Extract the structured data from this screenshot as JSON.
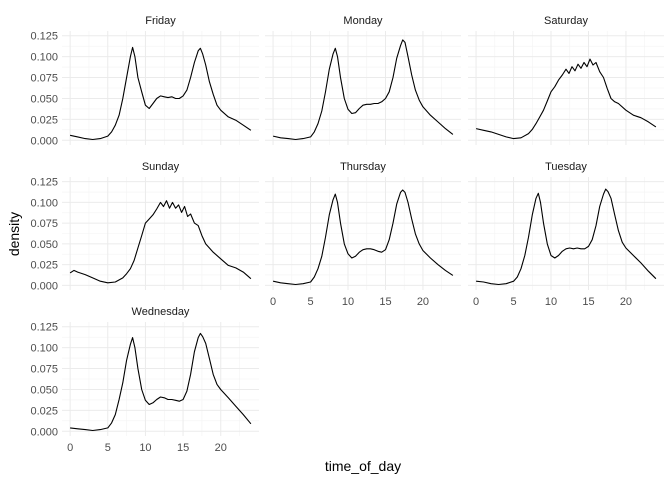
{
  "chart_data": {
    "type": "line",
    "xlabel": "time_of_day",
    "ylabel": "density",
    "xlim": [
      0,
      24
    ],
    "ylim": [
      0,
      0.125
    ],
    "x_ticks": [
      0,
      5,
      10,
      15,
      20
    ],
    "x_tick_labels": [
      "0",
      "5",
      "10",
      "15",
      "20"
    ],
    "y_ticks": [
      0,
      0.025,
      0.05,
      0.075,
      0.1,
      0.125
    ],
    "y_tick_labels": [
      "0.000",
      "0.025",
      "0.050",
      "0.075",
      "0.100",
      "0.125"
    ],
    "grid": true,
    "panels": [
      {
        "name": "Friday",
        "x": [
          0,
          1,
          2,
          3,
          4,
          5,
          5.5,
          6,
          6.5,
          7,
          7.5,
          8,
          8.3,
          8.6,
          9,
          9.5,
          10,
          10.5,
          11,
          11.5,
          12,
          12.5,
          13,
          13.5,
          14,
          14.5,
          15,
          15.5,
          16,
          16.5,
          17,
          17.3,
          17.6,
          18,
          18.5,
          19,
          19.5,
          20,
          21,
          22,
          23,
          24
        ],
        "y": [
          0.006,
          0.004,
          0.002,
          0.001,
          0.002,
          0.005,
          0.01,
          0.018,
          0.03,
          0.05,
          0.075,
          0.1,
          0.111,
          0.1,
          0.075,
          0.058,
          0.042,
          0.038,
          0.044,
          0.05,
          0.053,
          0.052,
          0.051,
          0.052,
          0.05,
          0.05,
          0.053,
          0.06,
          0.075,
          0.093,
          0.107,
          0.11,
          0.103,
          0.09,
          0.07,
          0.055,
          0.042,
          0.036,
          0.028,
          0.024,
          0.018,
          0.012
        ]
      },
      {
        "name": "Monday",
        "x": [
          0,
          1,
          2,
          3,
          4,
          5,
          5.5,
          6,
          6.5,
          7,
          7.5,
          8,
          8.3,
          8.6,
          9,
          9.5,
          10,
          10.5,
          11,
          11.5,
          12,
          12.5,
          13,
          13.5,
          14,
          14.5,
          15,
          15.5,
          16,
          16.5,
          17,
          17.3,
          17.6,
          18,
          18.5,
          19,
          19.5,
          20,
          21,
          22,
          23,
          24
        ],
        "y": [
          0.005,
          0.003,
          0.002,
          0.001,
          0.002,
          0.004,
          0.01,
          0.02,
          0.035,
          0.058,
          0.085,
          0.103,
          0.11,
          0.1,
          0.075,
          0.05,
          0.037,
          0.032,
          0.033,
          0.038,
          0.042,
          0.043,
          0.043,
          0.044,
          0.044,
          0.046,
          0.05,
          0.058,
          0.075,
          0.098,
          0.113,
          0.12,
          0.117,
          0.1,
          0.078,
          0.06,
          0.048,
          0.04,
          0.03,
          0.022,
          0.014,
          0.007
        ]
      },
      {
        "name": "Saturday",
        "x": [
          0,
          1,
          2,
          3,
          4,
          5,
          6,
          7,
          7.5,
          8,
          8.5,
          9,
          9.5,
          10,
          10.5,
          11,
          11.5,
          12,
          12.4,
          12.8,
          13.2,
          13.6,
          14,
          14.4,
          14.8,
          15.2,
          15.6,
          16,
          16.5,
          17,
          17.5,
          18,
          18.5,
          19,
          20,
          21,
          22,
          23,
          24
        ],
        "y": [
          0.014,
          0.012,
          0.01,
          0.007,
          0.004,
          0.002,
          0.003,
          0.008,
          0.013,
          0.02,
          0.028,
          0.036,
          0.047,
          0.058,
          0.064,
          0.072,
          0.078,
          0.085,
          0.08,
          0.088,
          0.083,
          0.091,
          0.086,
          0.093,
          0.088,
          0.097,
          0.09,
          0.093,
          0.082,
          0.075,
          0.062,
          0.05,
          0.046,
          0.044,
          0.036,
          0.03,
          0.027,
          0.022,
          0.016
        ]
      },
      {
        "name": "Sunday",
        "x": [
          0,
          0.5,
          1,
          2,
          3,
          4,
          5,
          6,
          7,
          7.5,
          8,
          8.5,
          9,
          9.5,
          10,
          10.5,
          11,
          11.5,
          12,
          12.4,
          12.8,
          13.2,
          13.6,
          14,
          14.4,
          14.8,
          15.2,
          15.6,
          16,
          16.5,
          17,
          17.5,
          18,
          18.5,
          19,
          20,
          21,
          22,
          23,
          24
        ],
        "y": [
          0.015,
          0.018,
          0.016,
          0.013,
          0.009,
          0.005,
          0.003,
          0.004,
          0.009,
          0.014,
          0.02,
          0.03,
          0.045,
          0.06,
          0.075,
          0.08,
          0.085,
          0.092,
          0.1,
          0.095,
          0.102,
          0.093,
          0.1,
          0.093,
          0.097,
          0.088,
          0.095,
          0.083,
          0.086,
          0.075,
          0.072,
          0.06,
          0.05,
          0.045,
          0.04,
          0.032,
          0.024,
          0.021,
          0.016,
          0.008
        ]
      },
      {
        "name": "Thursday",
        "x": [
          0,
          1,
          2,
          3,
          4,
          5,
          5.5,
          6,
          6.5,
          7,
          7.5,
          8,
          8.3,
          8.6,
          9,
          9.5,
          10,
          10.5,
          11,
          11.5,
          12,
          12.5,
          13,
          13.5,
          14,
          14.5,
          15,
          15.5,
          16,
          16.5,
          17,
          17.3,
          17.6,
          18,
          18.5,
          19,
          19.5,
          20,
          21,
          22,
          23,
          24
        ],
        "y": [
          0.005,
          0.003,
          0.002,
          0.001,
          0.002,
          0.004,
          0.01,
          0.02,
          0.035,
          0.058,
          0.085,
          0.103,
          0.11,
          0.1,
          0.075,
          0.05,
          0.038,
          0.033,
          0.035,
          0.04,
          0.043,
          0.044,
          0.044,
          0.043,
          0.041,
          0.04,
          0.043,
          0.055,
          0.075,
          0.098,
          0.112,
          0.115,
          0.112,
          0.1,
          0.08,
          0.062,
          0.05,
          0.042,
          0.033,
          0.025,
          0.018,
          0.012
        ]
      },
      {
        "name": "Tuesday",
        "x": [
          0,
          1,
          2,
          3,
          4,
          5,
          5.5,
          6,
          6.5,
          7,
          7.5,
          8,
          8.3,
          8.6,
          9,
          9.5,
          10,
          10.5,
          11,
          11.5,
          12,
          12.5,
          13,
          13.5,
          14,
          14.5,
          15,
          15.5,
          16,
          16.5,
          17,
          17.3,
          17.6,
          18,
          18.5,
          19,
          19.5,
          20,
          21,
          22,
          23,
          24
        ],
        "y": [
          0.005,
          0.004,
          0.002,
          0.001,
          0.002,
          0.005,
          0.01,
          0.02,
          0.036,
          0.058,
          0.085,
          0.105,
          0.111,
          0.1,
          0.075,
          0.05,
          0.036,
          0.033,
          0.036,
          0.041,
          0.044,
          0.045,
          0.044,
          0.045,
          0.044,
          0.044,
          0.047,
          0.055,
          0.072,
          0.095,
          0.11,
          0.116,
          0.113,
          0.105,
          0.085,
          0.066,
          0.052,
          0.045,
          0.036,
          0.027,
          0.017,
          0.008
        ]
      },
      {
        "name": "Wednesday",
        "x": [
          0,
          1,
          2,
          3,
          4,
          5,
          5.5,
          6,
          6.5,
          7,
          7.5,
          8,
          8.3,
          8.6,
          9,
          9.5,
          10,
          10.5,
          11,
          11.5,
          12,
          12.5,
          13,
          13.5,
          14,
          14.5,
          15,
          15.5,
          16,
          16.5,
          17,
          17.3,
          17.6,
          18,
          18.5,
          19,
          19.5,
          20,
          21,
          22,
          23,
          24
        ],
        "y": [
          0.004,
          0.003,
          0.002,
          0.001,
          0.002,
          0.004,
          0.01,
          0.02,
          0.038,
          0.058,
          0.085,
          0.104,
          0.112,
          0.1,
          0.075,
          0.05,
          0.037,
          0.032,
          0.034,
          0.038,
          0.041,
          0.04,
          0.038,
          0.038,
          0.037,
          0.036,
          0.038,
          0.048,
          0.068,
          0.095,
          0.112,
          0.117,
          0.113,
          0.105,
          0.087,
          0.068,
          0.056,
          0.05,
          0.04,
          0.03,
          0.02,
          0.009
        ]
      }
    ]
  }
}
